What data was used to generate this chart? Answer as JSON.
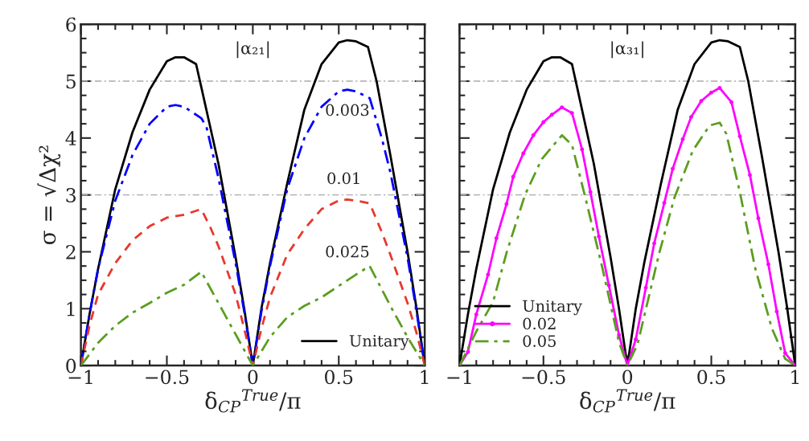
{
  "chart_data": [
    {
      "type": "line",
      "xlabel": "δ$_{CP}$$^{True}$/π",
      "ylabel": "σ = √Δχ²",
      "xlim": [
        -1,
        1
      ],
      "ylim": [
        0,
        6
      ],
      "xticks": [
        -1,
        {
          "value": -0.9,
          "label": null
        },
        {
          "value": -0.8,
          "label": null
        },
        {
          "value": -0.7,
          "label": null
        },
        {
          "value": -0.6,
          "label": null
        },
        {
          "value": -0.5,
          "label": "−0.5"
        },
        {
          "value": -0.4,
          "label": null
        },
        {
          "value": -0.3,
          "label": null
        },
        {
          "value": -0.2,
          "label": null
        },
        {
          "value": -0.1,
          "label": null
        },
        0,
        {
          "value": 0.1,
          "label": null
        },
        {
          "value": 0.2,
          "label": null
        },
        {
          "value": 0.3,
          "label": null
        },
        {
          "value": 0.4,
          "label": null
        },
        0.5,
        {
          "value": 0.6,
          "label": null
        },
        {
          "value": 0.7,
          "label": null
        },
        {
          "value": 0.8,
          "label": null
        },
        {
          "value": 0.9,
          "label": null
        },
        1
      ],
      "yticks": [
        0,
        {
          "value": 0.25,
          "label": null
        },
        {
          "value": 0.5,
          "label": null
        },
        {
          "value": 0.75,
          "label": null
        },
        1,
        {
          "value": 1.25,
          "label": null
        },
        {
          "value": 1.5,
          "label": null
        },
        {
          "value": 1.75,
          "label": null
        },
        2,
        {
          "value": 2.25,
          "label": null
        },
        {
          "value": 2.5,
          "label": null
        },
        {
          "value": 2.75,
          "label": null
        },
        3,
        {
          "value": 3.25,
          "label": null
        },
        {
          "value": 3.5,
          "label": null
        },
        {
          "value": 3.75,
          "label": null
        },
        4,
        {
          "value": 4.25,
          "label": null
        },
        {
          "value": 4.5,
          "label": null
        },
        {
          "value": 4.75,
          "label": null
        },
        5,
        {
          "value": 5.25,
          "label": null
        },
        {
          "value": 5.5,
          "label": null
        },
        {
          "value": 5.75,
          "label": null
        },
        6
      ],
      "ref_lines": [
        {
          "axis": "y",
          "value": 3,
          "color": "#aaaaaa",
          "line_style": "dashdot"
        },
        {
          "axis": "y",
          "value": 5,
          "color": "#aaaaaa",
          "line_style": "dashdot"
        }
      ],
      "legend": "bottom right",
      "grid": false,
      "annotations": [
        "|α₂₁|",
        "0.003",
        "0.01",
        "0.025"
      ],
      "series": [
        {
          "name": "Unitary",
          "color": "#000000",
          "line_style": "solid",
          "x": [
            -1,
            -0.95,
            -0.9,
            -0.8,
            -0.7,
            -0.6,
            -0.5,
            -0.45,
            -0.4,
            -0.33,
            -0.3,
            -0.2,
            -0.1,
            -0.05,
            0,
            0.05,
            0.1,
            0.2,
            0.3,
            0.4,
            0.5,
            0.55,
            0.6,
            0.67,
            0.72,
            0.8,
            0.9,
            0.95,
            1
          ],
          "values": [
            0,
            0.9,
            1.7,
            3.1,
            4.1,
            4.85,
            5.35,
            5.42,
            5.42,
            5.3,
            4.9,
            3.55,
            1.9,
            1.0,
            0,
            1.0,
            1.8,
            3.2,
            4.5,
            5.3,
            5.68,
            5.72,
            5.7,
            5.6,
            5.0,
            3.7,
            2.0,
            1.05,
            0
          ]
        },
        {
          "color": "#0000ff",
          "line_style": "dashdot",
          "x": [
            -1,
            -0.95,
            -0.9,
            -0.8,
            -0.7,
            -0.6,
            -0.5,
            -0.45,
            -0.4,
            -0.3,
            -0.27,
            -0.2,
            -0.1,
            -0.05,
            0,
            0.05,
            0.1,
            0.2,
            0.3,
            0.4,
            0.5,
            0.55,
            0.6,
            0.68,
            0.75,
            0.8,
            0.9,
            0.95,
            1
          ],
          "values": [
            0,
            0.9,
            1.7,
            2.9,
            3.7,
            4.25,
            4.55,
            4.58,
            4.55,
            4.35,
            4.2,
            3.3,
            1.8,
            0.95,
            0,
            0.95,
            1.75,
            3.1,
            4.0,
            4.55,
            4.82,
            4.85,
            4.82,
            4.7,
            4.0,
            3.4,
            1.9,
            1.0,
            0
          ]
        },
        {
          "color": "#e8372c",
          "line_style": "dashed",
          "x": [
            -1,
            -0.95,
            -0.9,
            -0.8,
            -0.7,
            -0.6,
            -0.5,
            -0.4,
            -0.3,
            -0.25,
            -0.2,
            -0.1,
            -0.05,
            0,
            0.05,
            0.1,
            0.2,
            0.3,
            0.4,
            0.5,
            0.55,
            0.6,
            0.68,
            0.75,
            0.8,
            0.9,
            0.95,
            1
          ],
          "values": [
            0,
            0.7,
            1.25,
            1.8,
            2.2,
            2.45,
            2.6,
            2.65,
            2.75,
            2.45,
            2.1,
            1.25,
            0.65,
            0,
            0.65,
            1.2,
            1.95,
            2.4,
            2.75,
            2.9,
            2.92,
            2.9,
            2.85,
            2.35,
            1.95,
            1.1,
            0.6,
            0
          ]
        },
        {
          "color": "#5a9e1e",
          "line_style": "dashdot",
          "x": [
            -1,
            -0.9,
            -0.8,
            -0.7,
            -0.6,
            -0.5,
            -0.4,
            -0.3,
            -0.2,
            -0.1,
            0,
            0.1,
            0.2,
            0.3,
            0.4,
            0.5,
            0.6,
            0.68,
            0.8,
            0.9,
            1
          ],
          "values": [
            0,
            0.4,
            0.7,
            0.93,
            1.1,
            1.28,
            1.42,
            1.65,
            1.1,
            0.55,
            0,
            0.5,
            0.85,
            1.05,
            1.2,
            1.4,
            1.6,
            1.75,
            1.05,
            0.5,
            0
          ]
        }
      ]
    },
    {
      "type": "line",
      "xlabel": "δ$_{CP}$$^{True}$/π",
      "xlim": [
        -1,
        1
      ],
      "ylim": [
        0,
        6
      ],
      "tick_labels": "x",
      "xticks": [
        -1,
        {
          "value": -0.9,
          "label": null
        },
        {
          "value": -0.8,
          "label": null
        },
        {
          "value": -0.7,
          "label": null
        },
        {
          "value": -0.6,
          "label": null
        },
        {
          "value": -0.5,
          "label": "−0.5"
        },
        {
          "value": -0.4,
          "label": null
        },
        {
          "value": -0.3,
          "label": null
        },
        {
          "value": -0.2,
          "label": null
        },
        {
          "value": -0.1,
          "label": null
        },
        0,
        {
          "value": 0.1,
          "label": null
        },
        {
          "value": 0.2,
          "label": null
        },
        {
          "value": 0.3,
          "label": null
        },
        {
          "value": 0.4,
          "label": null
        },
        0.5,
        {
          "value": 0.6,
          "label": null
        },
        {
          "value": 0.7,
          "label": null
        },
        {
          "value": 0.8,
          "label": null
        },
        {
          "value": 0.9,
          "label": null
        },
        1
      ],
      "yticks": [
        0,
        {
          "value": 0.25,
          "label": null
        },
        {
          "value": 0.5,
          "label": null
        },
        {
          "value": 0.75,
          "label": null
        },
        1,
        {
          "value": 1.25,
          "label": null
        },
        {
          "value": 1.5,
          "label": null
        },
        {
          "value": 1.75,
          "label": null
        },
        2,
        {
          "value": 2.25,
          "label": null
        },
        {
          "value": 2.5,
          "label": null
        },
        {
          "value": 2.75,
          "label": null
        },
        3,
        {
          "value": 3.25,
          "label": null
        },
        {
          "value": 3.5,
          "label": null
        },
        {
          "value": 3.75,
          "label": null
        },
        4,
        {
          "value": 4.25,
          "label": null
        },
        {
          "value": 4.5,
          "label": null
        },
        {
          "value": 4.75,
          "label": null
        },
        5,
        {
          "value": 5.25,
          "label": null
        },
        {
          "value": 5.5,
          "label": null
        },
        {
          "value": 5.75,
          "label": null
        },
        6
      ],
      "ref_lines": [
        {
          "axis": "y",
          "value": 3,
          "color": "#aaaaaa",
          "line_style": "dashdot"
        },
        {
          "axis": "y",
          "value": 5,
          "color": "#aaaaaa",
          "line_style": "dashdot"
        }
      ],
      "legend": "bottom left",
      "grid": false,
      "annotations": [
        "|α₃₁|"
      ],
      "series": [
        {
          "name": "Unitary",
          "color": "#000000",
          "line_style": "solid",
          "x": [
            -1,
            -0.95,
            -0.9,
            -0.8,
            -0.7,
            -0.6,
            -0.5,
            -0.45,
            -0.4,
            -0.33,
            -0.3,
            -0.2,
            -0.1,
            -0.05,
            0,
            0.05,
            0.1,
            0.2,
            0.3,
            0.4,
            0.5,
            0.55,
            0.6,
            0.67,
            0.72,
            0.8,
            0.9,
            0.95,
            1
          ],
          "values": [
            0,
            0.9,
            1.7,
            3.1,
            4.1,
            4.85,
            5.35,
            5.42,
            5.42,
            5.3,
            4.9,
            3.55,
            1.9,
            1.0,
            0,
            1.0,
            1.8,
            3.2,
            4.5,
            5.3,
            5.68,
            5.72,
            5.7,
            5.6,
            5.0,
            3.7,
            2.0,
            1.05,
            0
          ]
        },
        {
          "name": "0.02",
          "color": "#ff00ff",
          "line_style": "solid",
          "marker": "circle",
          "x": [
            -1,
            -0.95,
            -0.9,
            -0.83,
            -0.78,
            -0.72,
            -0.68,
            -0.62,
            -0.56,
            -0.5,
            -0.45,
            -0.39,
            -0.33,
            -0.27,
            -0.22,
            -0.17,
            -0.11,
            -0.05,
            0,
            0.05,
            0.11,
            0.16,
            0.22,
            0.27,
            0.33,
            0.38,
            0.44,
            0.5,
            0.55,
            0.62,
            0.67,
            0.73,
            0.78,
            0.84,
            0.89,
            0.94,
            1
          ],
          "values": [
            0,
            0.24,
            0.9,
            1.6,
            2.24,
            2.84,
            3.32,
            3.73,
            4.05,
            4.28,
            4.41,
            4.54,
            4.44,
            3.8,
            3.05,
            2.27,
            1.41,
            0.54,
            0,
            0.46,
            1.37,
            2.15,
            2.86,
            3.46,
            3.98,
            4.37,
            4.65,
            4.8,
            4.88,
            4.63,
            4.03,
            3.35,
            2.59,
            1.78,
            0.95,
            0.22,
            0
          ]
        },
        {
          "name": "0.05",
          "color": "#5a9e1e",
          "line_style": "dashdot",
          "x": [
            -1,
            -0.9,
            -0.8,
            -0.72,
            -0.61,
            -0.51,
            -0.39,
            -0.33,
            -0.25,
            -0.15,
            -0.05,
            0,
            0.06,
            0.19,
            0.28,
            0.39,
            0.49,
            0.55,
            0.59,
            0.67,
            0.76,
            0.86,
            0.94,
            1
          ],
          "values": [
            0,
            0.6,
            1.12,
            1.98,
            3.0,
            3.63,
            4.05,
            3.88,
            2.95,
            1.73,
            0.41,
            0,
            0.37,
            1.98,
            2.95,
            3.78,
            4.22,
            4.27,
            4.07,
            3.05,
            1.73,
            0.66,
            0.12,
            0
          ]
        }
      ]
    }
  ]
}
